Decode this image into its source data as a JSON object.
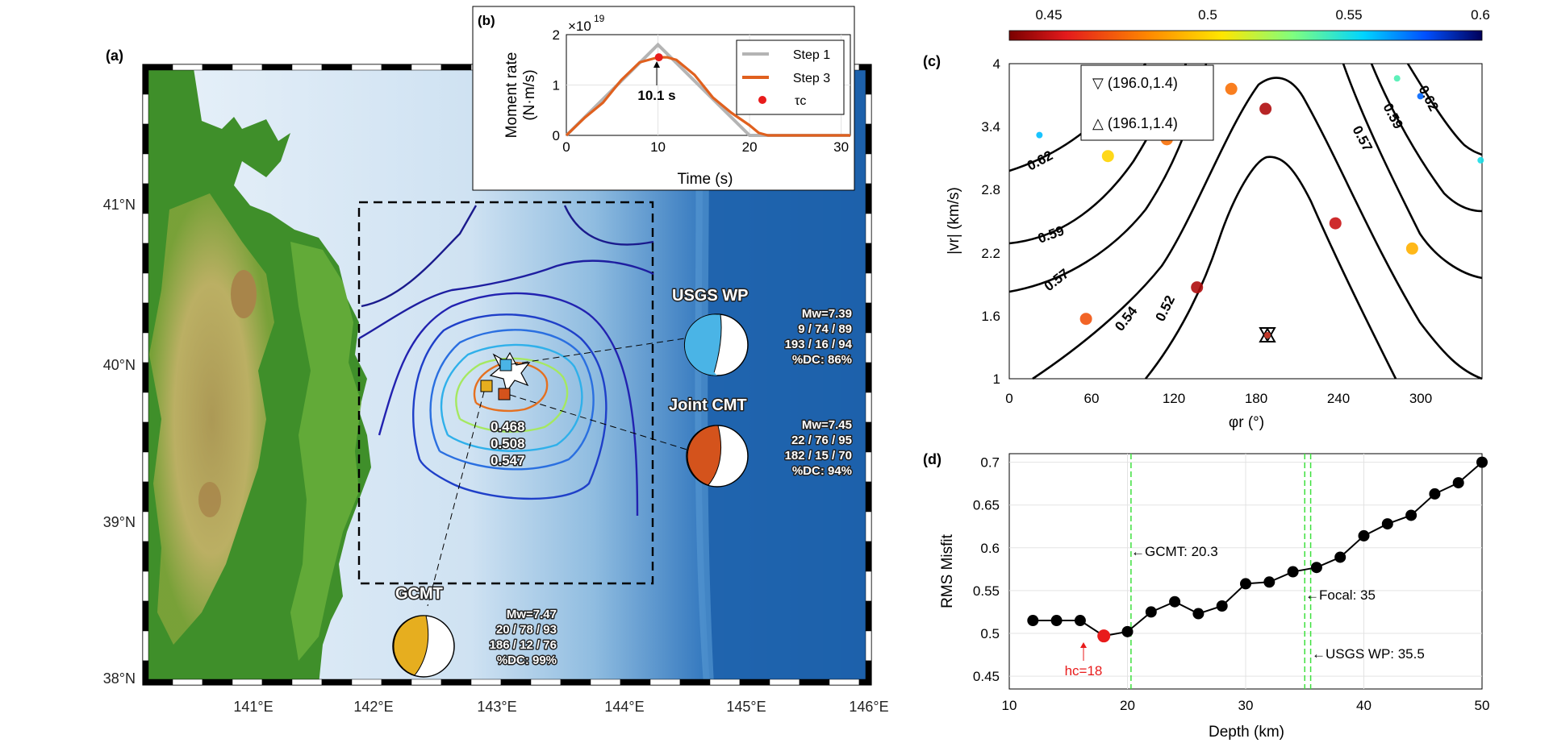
{
  "panel_a": {
    "label": "(a)",
    "lat_ticks": [
      "41°N",
      "40°N",
      "39°N",
      "38°N"
    ],
    "lon_ticks": [
      "141°E",
      "142°E",
      "143°E",
      "144°E",
      "145°E",
      "146°E"
    ],
    "contour_labels": [
      "0.468",
      "0.508",
      "0.547"
    ],
    "colors": {
      "land_low": "#2e7d1a",
      "land_mid": "#c9b36a",
      "ocean_shallow": "#d9eaf6",
      "ocean_deep": "#1f5fa3"
    },
    "solutions": [
      {
        "name": "USGS WP",
        "mw": "Mw=7.39",
        "plane1": "9 / 74 / 89",
        "plane2": "193 / 16 / 94",
        "dc": "%DC: 86%",
        "color": "#4ab4e6"
      },
      {
        "name": "Joint CMT",
        "mw": "Mw=7.45",
        "plane1": "22 / 76 / 95",
        "plane2": "182 / 15 / 70",
        "dc": "%DC: 94%",
        "color": "#d4531c"
      },
      {
        "name": "GCMT",
        "mw": "Mw=7.47",
        "plane1": "20 / 78 / 93",
        "plane2": "186 / 12 / 76",
        "dc": "%DC: 99%",
        "color": "#e6ae1f"
      }
    ]
  },
  "panel_b": {
    "label": "(b)",
    "ylabel_line1": "Moment rate",
    "ylabel_line2": "(N·m/s)",
    "xlabel": "Time (s)",
    "exponent_base": "×10",
    "exponent_power": "19",
    "peak_label": "10.1 s",
    "legend": [
      "Step 1",
      "Step 3",
      "τc"
    ],
    "x_ticks": [
      "0",
      "10",
      "20",
      "30"
    ],
    "y_ticks": [
      "0",
      "1",
      "2"
    ]
  },
  "panel_c": {
    "label": "(c)",
    "xlabel": "φr (°)",
    "ylabel": "|vr| (km/s)",
    "colorbar_ticks": [
      "0.45",
      "0.5",
      "0.55",
      "0.6"
    ],
    "x_ticks": [
      "0",
      "60",
      "120",
      "180",
      "240",
      "300"
    ],
    "y_ticks": [
      "1",
      "1.6",
      "2.2",
      "2.8",
      "3.4",
      "4"
    ],
    "legend": [
      "▽ (196.0,1.4)",
      "△ (196.1,1.4)"
    ],
    "contour_labels": [
      "0.62",
      "0.59",
      "0.57",
      "0.54",
      "0.52",
      "0.57",
      "0.59",
      "0.62"
    ]
  },
  "panel_d": {
    "label": "(d)",
    "xlabel": "Depth (km)",
    "ylabel": "RMS Misfit",
    "x_ticks": [
      "10",
      "20",
      "30",
      "40",
      "50"
    ],
    "y_ticks": [
      "0.45",
      "0.5",
      "0.55",
      "0.6",
      "0.65",
      "0.7"
    ],
    "annotations": [
      "←GCMT: 20.3",
      "←Focal: 35",
      "←USGS WP: 35.5"
    ],
    "hc_label": "hc=18"
  },
  "chart_data": [
    {
      "type": "line",
      "panel": "b",
      "xlabel": "Time (s)",
      "ylabel": "Moment rate (N·m/s) ×10^19",
      "xlim": [
        0,
        31
      ],
      "ylim": [
        0,
        2
      ],
      "series": [
        {
          "name": "Step 1",
          "x": [
            0,
            10,
            20,
            22,
            31
          ],
          "values": [
            0,
            1.8,
            0,
            0,
            0
          ]
        },
        {
          "name": "Step 3",
          "x": [
            0,
            2,
            4,
            6,
            8,
            10,
            11,
            12,
            14,
            16,
            18,
            20,
            21,
            22,
            31
          ],
          "values": [
            0,
            0.35,
            0.65,
            1.1,
            1.45,
            1.55,
            1.55,
            1.5,
            1.2,
            0.75,
            0.45,
            0.2,
            0.05,
            0,
            0
          ]
        },
        {
          "name": "τc",
          "x": [
            10.1
          ],
          "values": [
            1.55
          ]
        }
      ]
    },
    {
      "type": "line",
      "panel": "d",
      "xlabel": "Depth (km)",
      "ylabel": "RMS Misfit",
      "xlim": [
        10,
        50
      ],
      "ylim": [
        0.435,
        0.71
      ],
      "x": [
        12,
        14,
        16,
        18,
        20,
        22,
        24,
        26,
        28,
        30,
        32,
        34,
        36,
        38,
        40,
        42,
        44,
        46,
        48,
        50
      ],
      "series": [
        {
          "values": [
            0.515,
            0.515,
            0.515,
            0.497,
            0.502,
            0.525,
            0.537,
            0.523,
            0.532,
            0.558,
            0.56,
            0.572,
            0.577,
            0.589,
            0.614,
            0.628,
            0.638,
            0.663,
            0.676,
            0.7
          ]
        }
      ],
      "vlines": [
        20.3,
        35,
        35.5
      ]
    },
    {
      "type": "scatter",
      "panel": "c",
      "xlabel": "φr (°)",
      "ylabel": "|vr| (km/s)",
      "xlim": [
        0,
        345
      ],
      "ylim": [
        1,
        4
      ],
      "x": [
        22,
        56,
        72,
        115,
        137,
        162,
        187,
        238,
        283,
        294,
        300,
        344
      ],
      "values": [
        3.32,
        1.57,
        3.12,
        3.28,
        1.87,
        3.76,
        3.57,
        2.48,
        3.86,
        2.24,
        3.69,
        3.08
      ],
      "marker_values": [
        0.55,
        0.46,
        0.49,
        0.465,
        0.44,
        0.465,
        0.44,
        0.445,
        0.53,
        0.48,
        0.57,
        0.54
      ]
    }
  ]
}
